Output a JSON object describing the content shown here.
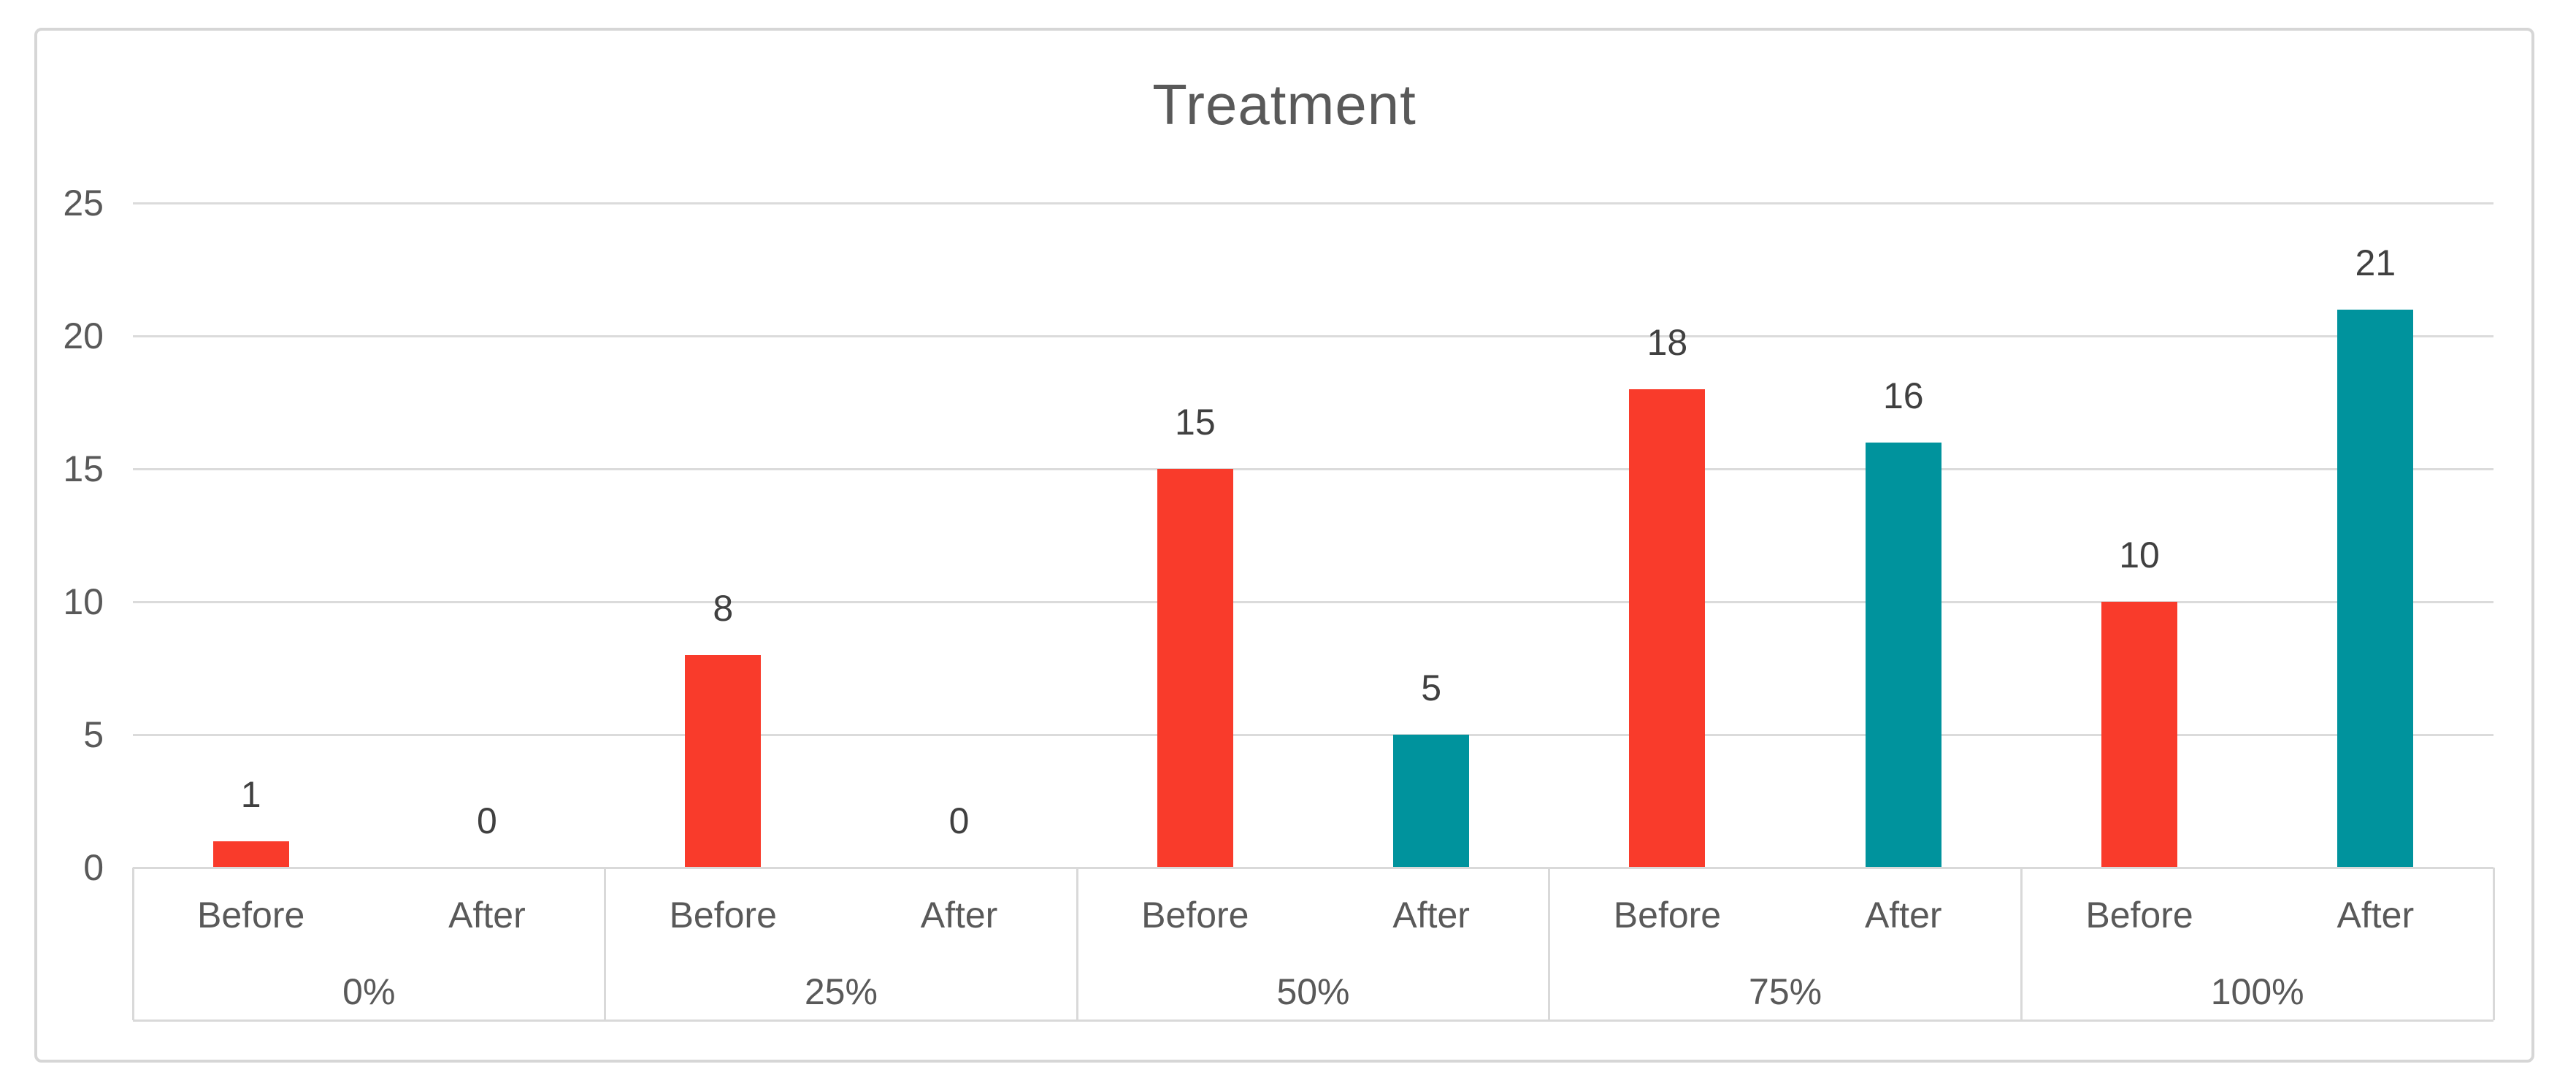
{
  "title": "Treatment",
  "colors": {
    "before_bar": "#F93B2B",
    "after_bar": "#00939D",
    "gridline": "#DBDBDB",
    "axis_line": "#D9D9D9",
    "card_border": "#D6D6D6",
    "tick_text": "#595959",
    "title_text": "#595959",
    "data_label_text": "#404040",
    "background": "#FFFFFF"
  },
  "y_axis": {
    "min": 0,
    "max": 25,
    "step": 5,
    "ticks": [
      "0",
      "5",
      "10",
      "15",
      "20",
      "25"
    ]
  },
  "x_axis": {
    "sub_labels": [
      "Before",
      "After"
    ],
    "group_labels": [
      "0%",
      "25%",
      "50%",
      "75%",
      "100%"
    ]
  },
  "chart_data": {
    "type": "bar",
    "title": "Treatment",
    "categories": [
      "0%",
      "25%",
      "50%",
      "75%",
      "100%"
    ],
    "series": [
      {
        "name": "Before",
        "color_key": "before_bar",
        "values": [
          1,
          8,
          15,
          18,
          10
        ]
      },
      {
        "name": "After",
        "color_key": "after_bar",
        "values": [
          0,
          0,
          5,
          16,
          21
        ]
      }
    ],
    "data_labels": [
      [
        "1",
        "8",
        "15",
        "18",
        "10"
      ],
      [
        "0",
        "0",
        "5",
        "16",
        "21"
      ]
    ],
    "xlabel": "",
    "ylabel": "",
    "ylim": [
      0,
      25
    ],
    "ytick_step": 5,
    "grid": "horizontal",
    "legend": "none",
    "data_label_position": "outside-end"
  }
}
